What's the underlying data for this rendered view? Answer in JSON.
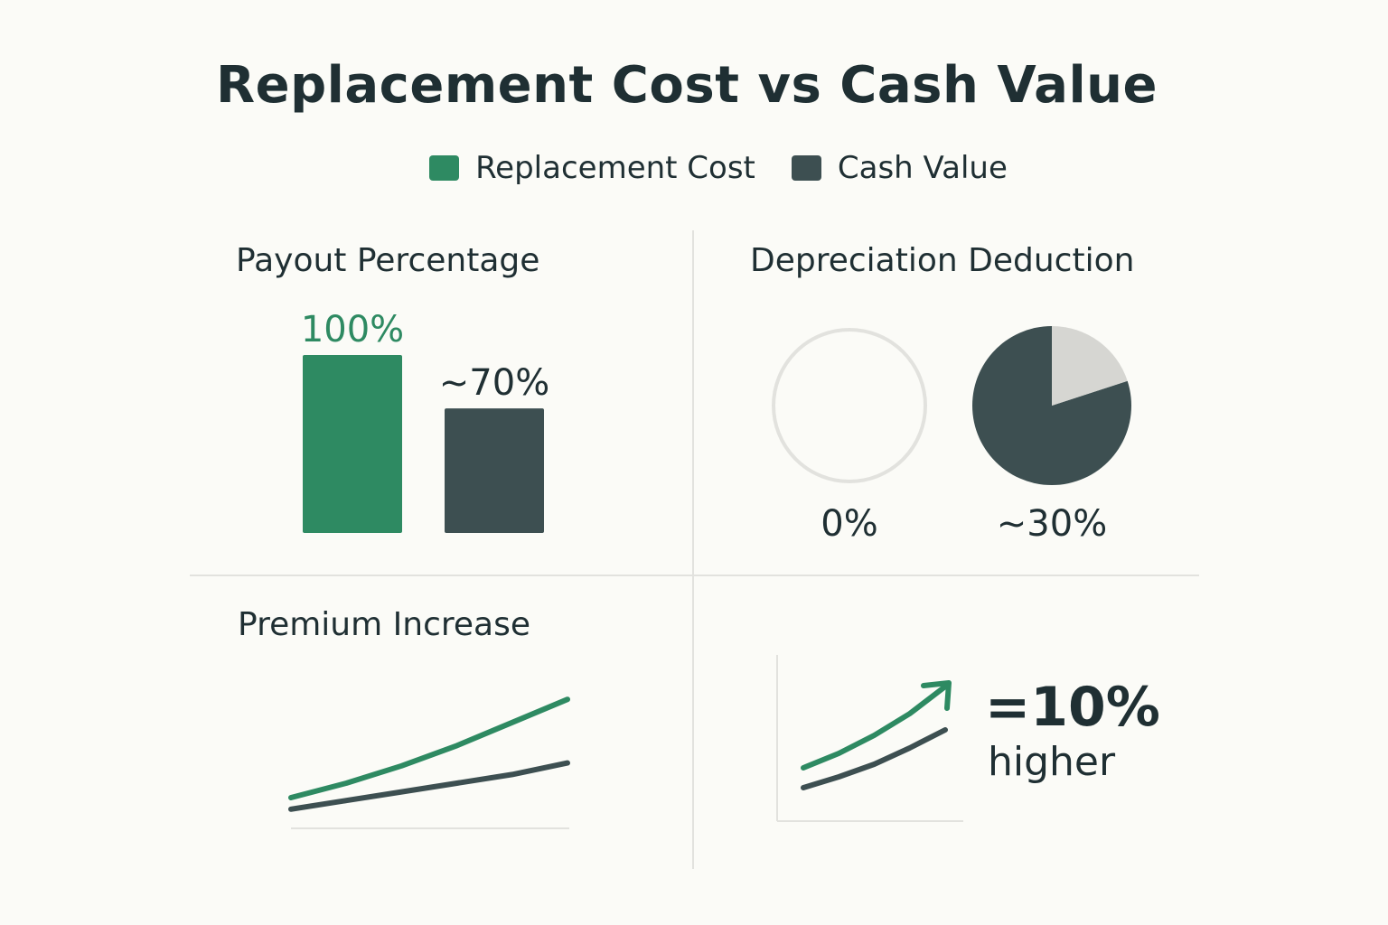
{
  "title": "Replacement Cost vs Cash Value",
  "colors": {
    "replacement": "#2e8a62",
    "cash": "#3d4f51",
    "light": "#d6d6d2",
    "grid": "#e2e2de",
    "text": "#1f2f33"
  },
  "legend": [
    {
      "label": "Replacement Cost",
      "color": "#2e8a62"
    },
    {
      "label": "Cash Value",
      "color": "#3d4f51"
    }
  ],
  "chart_data": [
    {
      "type": "bar",
      "title": "Payout Percentage",
      "categories": [
        "Replacement Cost",
        "Cash Value"
      ],
      "values": [
        100,
        70
      ],
      "labels": [
        "100%",
        "~70%"
      ],
      "ylim": [
        0,
        100
      ]
    },
    {
      "type": "pie",
      "title": "Depreciation Deduction",
      "series": [
        {
          "name": "Replacement Cost",
          "value": 0,
          "label": "0%"
        },
        {
          "name": "Cash Value",
          "value": 30,
          "label": "~30%"
        }
      ]
    },
    {
      "type": "line",
      "title": "Premium Increase",
      "series": [
        {
          "name": "Replacement Cost",
          "values": [
            10,
            15,
            21,
            28,
            36,
            44
          ]
        },
        {
          "name": "Cash Value",
          "values": [
            6,
            9,
            12,
            15,
            18,
            22
          ]
        }
      ],
      "grid": false
    },
    {
      "type": "line",
      "series": [
        {
          "name": "Replacement Cost",
          "values": [
            10,
            18,
            28,
            40,
            55
          ]
        },
        {
          "name": "Cash Value",
          "values": [
            5,
            11,
            18,
            27,
            37
          ]
        }
      ],
      "annotation": {
        "value": "=10%",
        "text": "higher"
      }
    }
  ]
}
